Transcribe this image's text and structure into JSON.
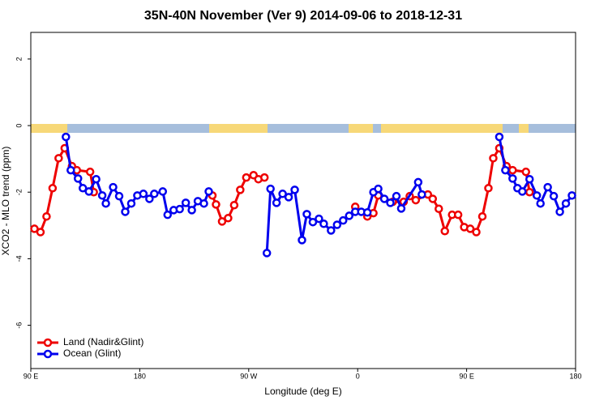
{
  "chart_data": {
    "type": "line",
    "title": "35N-40N November (Ver 9)   2014-09-06 to 2018-12-31",
    "xlabel": "Longitude (deg E)",
    "ylabel": "XCO2 - MLO trend (ppm)",
    "xlim": [
      90,
      540
    ],
    "xticks": [
      {
        "value": 90,
        "label": "90 E"
      },
      {
        "value": 180,
        "label": "180"
      },
      {
        "value": 270,
        "label": "90 W"
      },
      {
        "value": 360,
        "label": "0"
      },
      {
        "value": 450,
        "label": "90 E"
      },
      {
        "value": 540,
        "label": "180"
      }
    ],
    "ylim": [
      -7.3,
      2.8
    ],
    "yticks": [
      -6,
      -4,
      -2,
      0,
      2
    ],
    "legend": "bottom-left",
    "series": [
      {
        "name": "Land (Nadir&Glint)",
        "color": "#ee0000",
        "x": [
          93,
          98,
          103,
          108,
          113,
          118,
          124,
          128,
          139,
          142,
          null,
          240,
          243,
          248,
          253,
          258,
          263,
          268,
          274,
          278,
          283,
          null,
          358,
          368,
          373,
          377,
          389,
          398,
          403,
          408,
          418,
          422,
          427,
          432,
          438,
          443,
          448,
          453,
          458,
          463,
          468,
          472,
          477,
          483,
          488,
          499,
          502
        ],
        "values": [
          -3.1,
          -3.2,
          -2.73,
          -1.88,
          -0.98,
          -0.68,
          -1.22,
          -1.34,
          -1.39,
          -2.0,
          null,
          -2.1,
          -2.37,
          -2.88,
          -2.78,
          -2.39,
          -1.93,
          -1.56,
          -1.49,
          -1.61,
          -1.56,
          null,
          -2.44,
          -2.73,
          -2.63,
          -2.1,
          -2.29,
          -2.29,
          -2.12,
          -2.24,
          -2.07,
          -2.2,
          -2.5,
          -3.17,
          -2.68,
          -2.68,
          -3.05,
          -3.1,
          -3.2,
          -2.73,
          -1.88,
          -0.98,
          -0.68,
          -1.22,
          -1.34,
          -1.39,
          -2.0
        ]
      },
      {
        "name": "Ocean (Glint)",
        "color": "#0000ee",
        "x": [
          119,
          123,
          129,
          133,
          138,
          144,
          149,
          152,
          158,
          163,
          168,
          173,
          178,
          183,
          188,
          192,
          199,
          203,
          208,
          213,
          218,
          223,
          228,
          233,
          237,
          null,
          285,
          288,
          293,
          298,
          303,
          308,
          314,
          318,
          323,
          328,
          332,
          338,
          343,
          348,
          353,
          358,
          363,
          368,
          373,
          377,
          382,
          387,
          392,
          396,
          410,
          413,
          null,
          477,
          482,
          488,
          492,
          496,
          502,
          508,
          511,
          517,
          522,
          527,
          532,
          537
        ],
        "values": [
          -0.34,
          -1.34,
          -1.59,
          -1.88,
          -1.98,
          -1.61,
          -2.1,
          -2.34,
          -1.85,
          -2.12,
          -2.59,
          -2.34,
          -2.1,
          -2.05,
          -2.2,
          -2.05,
          -1.98,
          -2.68,
          -2.54,
          -2.51,
          -2.32,
          -2.54,
          -2.27,
          -2.34,
          -1.98,
          null,
          -3.83,
          -1.9,
          -2.32,
          -2.05,
          -2.15,
          -1.93,
          -3.44,
          -2.66,
          -2.9,
          -2.8,
          -2.95,
          -3.15,
          -2.98,
          -2.85,
          -2.71,
          -2.59,
          -2.59,
          -2.61,
          -2.0,
          -1.9,
          -2.2,
          -2.32,
          -2.12,
          -2.49,
          -1.7,
          -2.07,
          null,
          -0.34,
          -1.34,
          -1.59,
          -1.88,
          -1.98,
          -1.61,
          -2.1,
          -2.34,
          -1.85,
          -2.12,
          -2.59,
          -2.34,
          -2.1
        ]
      }
    ]
  }
}
